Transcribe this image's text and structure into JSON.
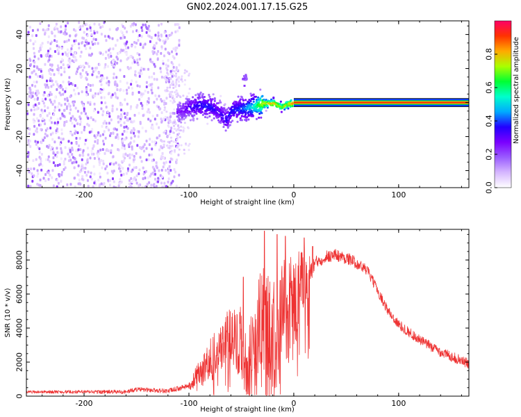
{
  "title": "GN02.2024.001.17.15.G25",
  "chart_data": [
    {
      "type": "heatmap",
      "xlabel": "Height of straight line (km)",
      "ylabel": "Frequency (Hz)",
      "xlim": [
        -255,
        167
      ],
      "ylim": [
        -50,
        48
      ],
      "x_ticks": [
        -200,
        -100,
        0,
        100
      ],
      "y_ticks": [
        -40,
        -20,
        0,
        20,
        40
      ],
      "colorbar": {
        "label": "Normalized spectral amplitude",
        "range": [
          0,
          1
        ],
        "ticks": [
          0.0,
          0.2,
          0.4,
          0.6,
          0.8
        ],
        "colors": [
          "#ffffff",
          "#d6b7ff",
          "#9a5cff",
          "#7a00ff",
          "#2200ff",
          "#00aaff",
          "#00ffcc",
          "#00ff33",
          "#aaff00",
          "#ffaa00",
          "#ff3300",
          "#ff0066"
        ]
      },
      "noise_region": {
        "x": [
          -255,
          -110
        ],
        "frequency": [
          -50,
          48
        ],
        "amplitude": [
          0.02,
          0.12
        ]
      },
      "signal_track": [
        {
          "x": -110,
          "freq": -5,
          "amp": 0.22
        },
        {
          "x": -100,
          "freq": -2,
          "amp": 0.3
        },
        {
          "x": -90,
          "freq": -1,
          "amp": 0.35
        },
        {
          "x": -80,
          "freq": -2,
          "amp": 0.35
        },
        {
          "x": -72,
          "freq": -5,
          "amp": 0.3
        },
        {
          "x": -65,
          "freq": -10,
          "amp": 0.35
        },
        {
          "x": -60,
          "freq": -4,
          "amp": 0.35
        },
        {
          "x": -50,
          "freq": -3,
          "amp": 0.4
        },
        {
          "x": -40,
          "freq": -2,
          "amp": 0.5
        },
        {
          "x": -30,
          "freq": 0,
          "amp": 0.75
        },
        {
          "x": -20,
          "freq": 0,
          "amp": 0.8
        },
        {
          "x": -12,
          "freq": -2,
          "amp": 0.7
        },
        {
          "x": -5,
          "freq": 0,
          "amp": 0.8
        },
        {
          "x": 0,
          "freq": 0,
          "amp": 0.9
        },
        {
          "x": 167,
          "freq": 0,
          "amp": 0.95
        }
      ],
      "blob": {
        "x": -48,
        "freq": 14,
        "amp": 0.25
      }
    },
    {
      "type": "line",
      "xlabel": "Height of straight line (km)",
      "ylabel": "SNR (10 * v/v)",
      "xlim": [
        -255,
        167
      ],
      "ylim": [
        0,
        9800
      ],
      "x_ticks": [
        -200,
        -100,
        0,
        100
      ],
      "y_ticks": [
        0,
        2000,
        4000,
        6000,
        8000
      ],
      "series": [
        {
          "color": "#ee3333",
          "envelope": [
            {
              "x": -255,
              "y": 250
            },
            {
              "x": -160,
              "y": 250
            },
            {
              "x": -150,
              "y": 400
            },
            {
              "x": -120,
              "y": 300
            },
            {
              "x": -100,
              "y": 600
            },
            {
              "x": -90,
              "y": 1400
            },
            {
              "x": -80,
              "y": 2200
            },
            {
              "x": -70,
              "y": 3000
            },
            {
              "x": -60,
              "y": 3800
            },
            {
              "x": -50,
              "y": 3200
            },
            {
              "x": -45,
              "y": 1600
            },
            {
              "x": -40,
              "y": 3000
            },
            {
              "x": -30,
              "y": 4500
            },
            {
              "x": -20,
              "y": 3500
            },
            {
              "x": -10,
              "y": 4500
            },
            {
              "x": 0,
              "y": 5500
            },
            {
              "x": 10,
              "y": 6600
            },
            {
              "x": 20,
              "y": 7800
            },
            {
              "x": 30,
              "y": 8200
            },
            {
              "x": 40,
              "y": 8300
            },
            {
              "x": 55,
              "y": 8000
            },
            {
              "x": 70,
              "y": 7400
            },
            {
              "x": 80,
              "y": 6200
            },
            {
              "x": 90,
              "y": 5000
            },
            {
              "x": 100,
              "y": 4200
            },
            {
              "x": 120,
              "y": 3300
            },
            {
              "x": 140,
              "y": 2600
            },
            {
              "x": 167,
              "y": 1900
            }
          ],
          "noise": [
            {
              "x": -255,
              "amp": 80
            },
            {
              "x": -100,
              "amp": 150
            },
            {
              "x": -90,
              "amp": 800
            },
            {
              "x": -60,
              "amp": 1800
            },
            {
              "x": -40,
              "amp": 3000
            },
            {
              "x": -10,
              "amp": 3500
            },
            {
              "x": 5,
              "amp": 2500
            },
            {
              "x": 20,
              "amp": 400
            },
            {
              "x": 80,
              "amp": 300
            },
            {
              "x": 167,
              "amp": 300
            }
          ],
          "spikes": [
            {
              "x": -48,
              "y": 7000
            },
            {
              "x": -28,
              "y": 9700
            },
            {
              "x": -16,
              "y": 9500
            },
            {
              "x": -8,
              "y": 9400
            },
            {
              "x": 10,
              "y": 9300
            },
            {
              "x": 18,
              "y": 8800
            }
          ]
        }
      ]
    }
  ]
}
